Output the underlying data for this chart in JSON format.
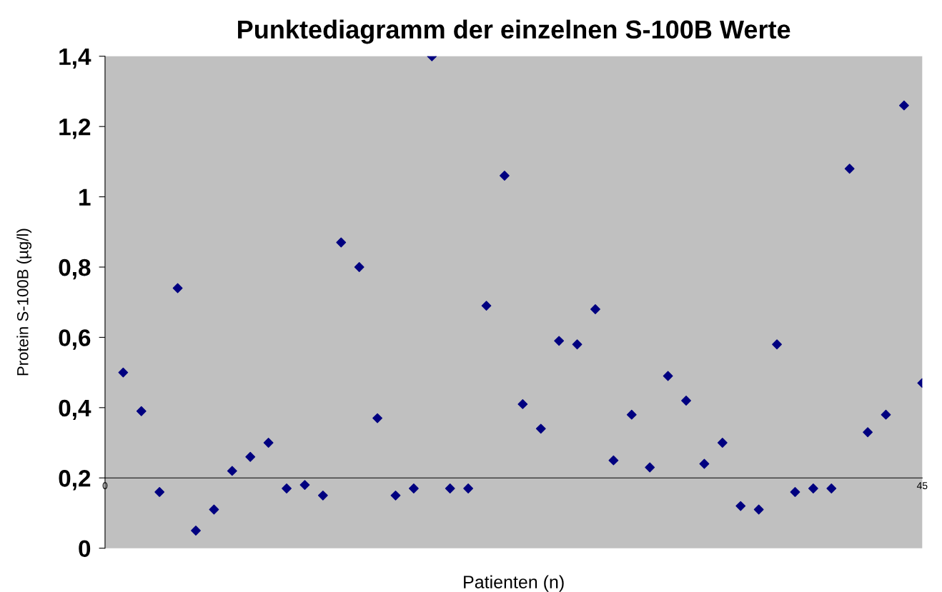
{
  "chart_data": {
    "type": "scatter",
    "title": "Punktediagramm der einzelnen S-100B Werte",
    "xlabel": "Patienten (n)",
    "ylabel": "Protein S-100B (µg/l)",
    "x": [
      1,
      2,
      3,
      4,
      5,
      6,
      7,
      8,
      9,
      10,
      11,
      12,
      13,
      14,
      15,
      16,
      17,
      18,
      19,
      20,
      21,
      22,
      23,
      24,
      25,
      26,
      27,
      28,
      29,
      30,
      31,
      32,
      33,
      34,
      35,
      36,
      37,
      38,
      39,
      40,
      41,
      42,
      43,
      44,
      45
    ],
    "series": [
      {
        "color": "#000080",
        "values": [
          0.5,
          0.39,
          0.16,
          0.74,
          0.05,
          0.11,
          0.22,
          0.26,
          0.3,
          0.17,
          0.18,
          0.15,
          0.87,
          0.8,
          0.37,
          0.15,
          0.17,
          1.4,
          0.17,
          0.17,
          0.69,
          1.06,
          0.41,
          0.34,
          0.59,
          0.58,
          0.68,
          0.25,
          0.38,
          0.23,
          0.49,
          0.42,
          0.24,
          0.3,
          0.12,
          0.11,
          0.58,
          0.16,
          0.17,
          0.17,
          1.08,
          0.33,
          0.38,
          1.26,
          0.47
        ]
      }
    ],
    "marker": "diamond",
    "grid": false,
    "legend": false,
    "xlim": [
      0,
      45
    ],
    "xticks": [
      0,
      45
    ],
    "ylim": [
      0,
      1.4
    ],
    "yticks": [
      0,
      {
        "value": 0.2,
        "label": "0,2"
      },
      {
        "value": 0.4,
        "label": "0,4"
      },
      {
        "value": 0.6,
        "label": "0,6"
      },
      {
        "value": 0.8,
        "label": "0,8"
      },
      1,
      {
        "value": 1.2,
        "label": "1,2"
      },
      {
        "value": 1.4,
        "label": "1,4"
      }
    ]
  }
}
